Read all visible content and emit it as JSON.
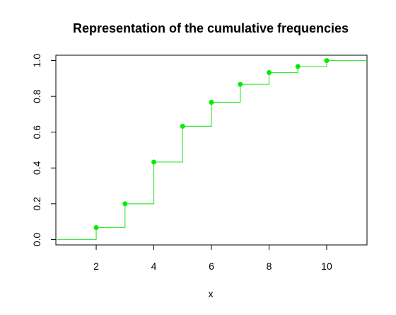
{
  "chart_data": {
    "type": "line",
    "subtype": "step-ecdf",
    "title": "Representation of the cumulative frequencies",
    "xlabel": "x",
    "ylabel": "",
    "xlim": [
      0.6,
      11.4
    ],
    "ylim": [
      -0.03,
      1.03
    ],
    "x_ticks": [
      2,
      4,
      6,
      8,
      10
    ],
    "y_ticks": [
      0.0,
      0.2,
      0.4,
      0.6,
      0.8,
      1.0
    ],
    "x_tick_labels": [
      "2",
      "4",
      "6",
      "8",
      "10"
    ],
    "y_tick_labels": [
      "0.0",
      "0.2",
      "0.4",
      "0.6",
      "0.8",
      "1.0"
    ],
    "series": [
      {
        "x": [
          2,
          3,
          4,
          5,
          6,
          7,
          8,
          9,
          10
        ],
        "y": [
          0.067,
          0.2,
          0.433,
          0.633,
          0.767,
          0.867,
          0.933,
          0.967,
          1.0
        ]
      }
    ],
    "line_color": "#3ee53e",
    "point_color": "#00ee00",
    "grid": false,
    "legend": "none"
  }
}
